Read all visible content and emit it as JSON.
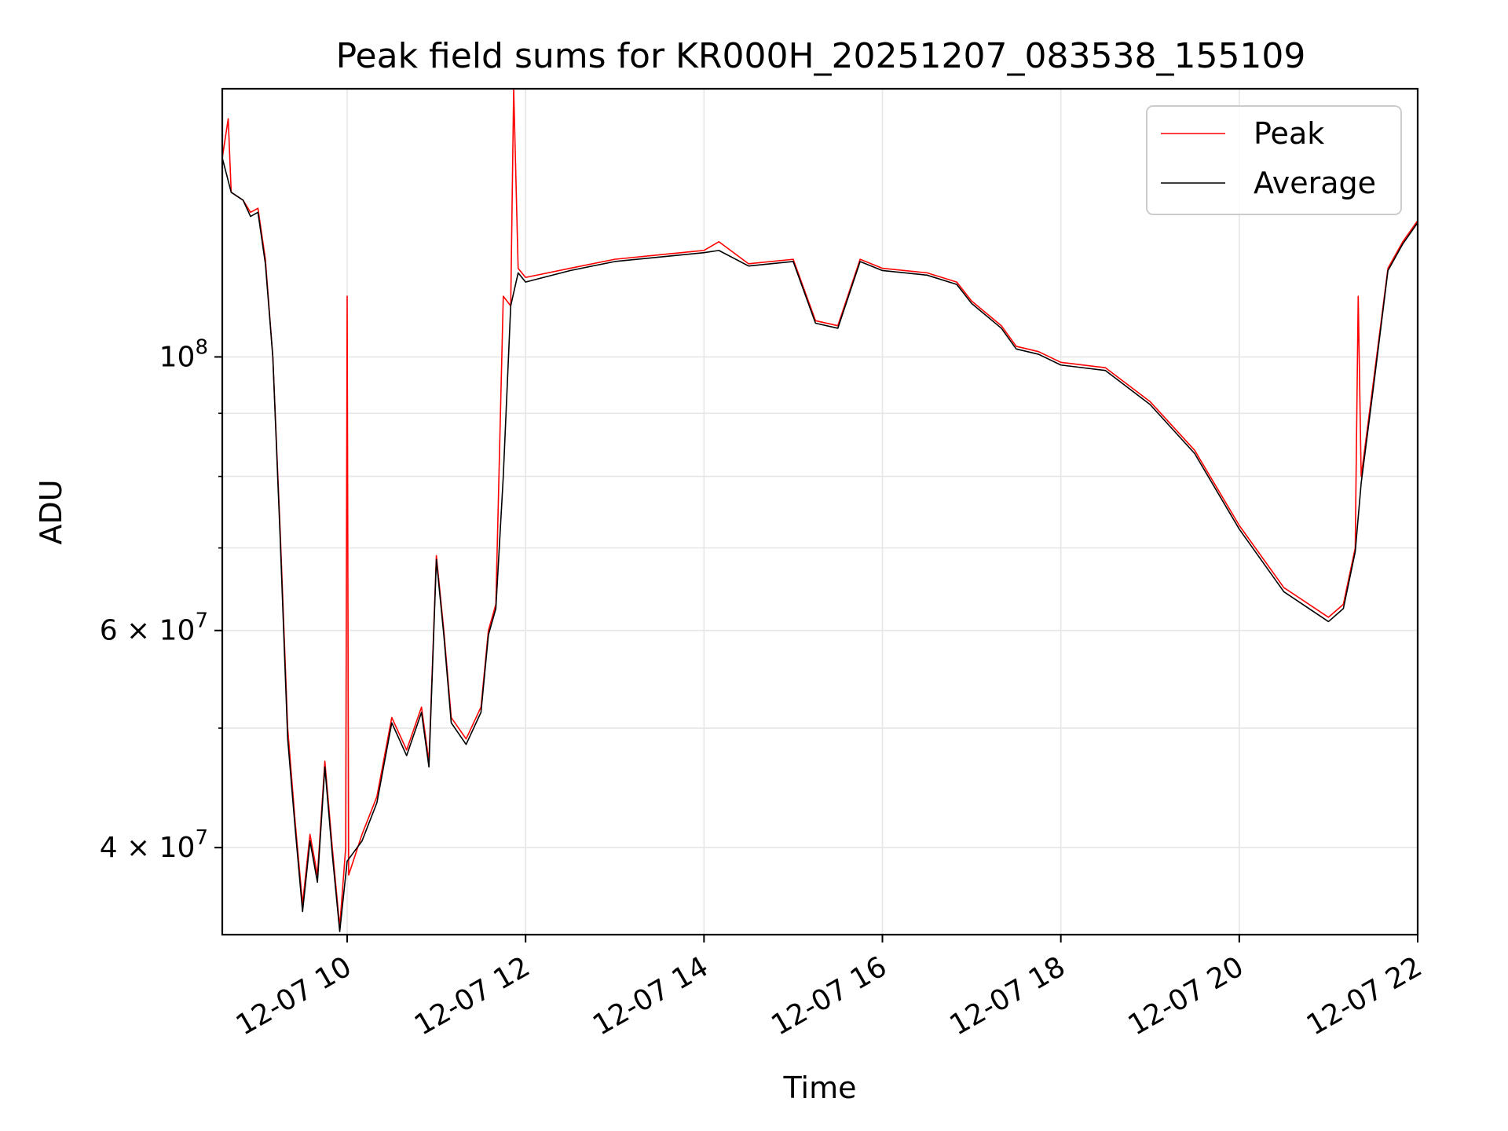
{
  "chart_data": {
    "type": "line",
    "title": "Peak field sums for KR000H_20251207_083538_155109",
    "xlabel": "Time",
    "ylabel": "ADU",
    "yscale": "log",
    "xlim": [
      "2025-12-07 08:36",
      "2025-12-07 22:00"
    ],
    "ylim": [
      34000000,
      165000000
    ],
    "grid": true,
    "legend": {
      "placement": "upper right",
      "entries": [
        "Peak",
        "Average"
      ]
    },
    "x_ticks": [
      {
        "value": "2025-12-07 10:00",
        "label": "12-07 10"
      },
      {
        "value": "2025-12-07 12:00",
        "label": "12-07 12"
      },
      {
        "value": "2025-12-07 14:00",
        "label": "12-07 14"
      },
      {
        "value": "2025-12-07 16:00",
        "label": "12-07 16"
      },
      {
        "value": "2025-12-07 18:00",
        "label": "12-07 18"
      },
      {
        "value": "2025-12-07 20:00",
        "label": "12-07 20"
      },
      {
        "value": "2025-12-07 22:00",
        "label": "12-07 22"
      }
    ],
    "y_major_ticks": [
      {
        "value": 40000000,
        "base": "4 × 10",
        "exp": "7"
      },
      {
        "value": 60000000,
        "base": "6 × 10",
        "exp": "7"
      },
      {
        "value": 100000000,
        "base": "10",
        "exp": "8"
      }
    ],
    "y_minor_ticks": [
      50000000,
      70000000,
      80000000,
      90000000
    ],
    "series": [
      {
        "name": "Peak",
        "color": "#ff0000",
        "points": [
          [
            "2025-12-07 08:36",
            145000000
          ],
          [
            "2025-12-07 08:40",
            156000000
          ],
          [
            "2025-12-07 08:42",
            136000000
          ],
          [
            "2025-12-07 08:50",
            134000000
          ],
          [
            "2025-12-07 08:55",
            131000000
          ],
          [
            "2025-12-07 09:00",
            132000000
          ],
          [
            "2025-12-07 09:05",
            120000000
          ],
          [
            "2025-12-07 09:10",
            100000000
          ],
          [
            "2025-12-07 09:15",
            72000000
          ],
          [
            "2025-12-07 09:20",
            50000000
          ],
          [
            "2025-12-07 09:25",
            42000000
          ],
          [
            "2025-12-07 09:30",
            36000000
          ],
          [
            "2025-12-07 09:35",
            41000000
          ],
          [
            "2025-12-07 09:40",
            38000000
          ],
          [
            "2025-12-07 09:45",
            47000000
          ],
          [
            "2025-12-07 09:50",
            40000000
          ],
          [
            "2025-12-07 09:55",
            34500000
          ],
          [
            "2025-12-07 09:59",
            40000000
          ],
          [
            "2025-12-07 10:00",
            112000000
          ],
          [
            "2025-12-07 10:01",
            38000000
          ],
          [
            "2025-12-07 10:10",
            41000000
          ],
          [
            "2025-12-07 10:20",
            44000000
          ],
          [
            "2025-12-07 10:30",
            51000000
          ],
          [
            "2025-12-07 10:40",
            48000000
          ],
          [
            "2025-12-07 10:50",
            52000000
          ],
          [
            "2025-12-07 10:55",
            47000000
          ],
          [
            "2025-12-07 11:00",
            69000000
          ],
          [
            "2025-12-07 11:05",
            60000000
          ],
          [
            "2025-12-07 11:10",
            51000000
          ],
          [
            "2025-12-07 11:20",
            49000000
          ],
          [
            "2025-12-07 11:30",
            52000000
          ],
          [
            "2025-12-07 11:35",
            60000000
          ],
          [
            "2025-12-07 11:40",
            63000000
          ],
          [
            "2025-12-07 11:45",
            112000000
          ],
          [
            "2025-12-07 11:50",
            110000000
          ],
          [
            "2025-12-07 11:52",
            165000000
          ],
          [
            "2025-12-07 11:55",
            118000000
          ],
          [
            "2025-12-07 12:00",
            116000000
          ],
          [
            "2025-12-07 12:30",
            118000000
          ],
          [
            "2025-12-07 13:00",
            120000000
          ],
          [
            "2025-12-07 13:30",
            121000000
          ],
          [
            "2025-12-07 14:00",
            122000000
          ],
          [
            "2025-12-07 14:10",
            124000000
          ],
          [
            "2025-12-07 14:30",
            119000000
          ],
          [
            "2025-12-07 15:00",
            120000000
          ],
          [
            "2025-12-07 15:15",
            107000000
          ],
          [
            "2025-12-07 15:30",
            106000000
          ],
          [
            "2025-12-07 15:45",
            120000000
          ],
          [
            "2025-12-07 16:00",
            118000000
          ],
          [
            "2025-12-07 16:30",
            117000000
          ],
          [
            "2025-12-07 16:50",
            115000000
          ],
          [
            "2025-12-07 17:00",
            111000000
          ],
          [
            "2025-12-07 17:20",
            106000000
          ],
          [
            "2025-12-07 17:30",
            102000000
          ],
          [
            "2025-12-07 17:45",
            101000000
          ],
          [
            "2025-12-07 18:00",
            99000000
          ],
          [
            "2025-12-07 18:30",
            98000000
          ],
          [
            "2025-12-07 19:00",
            92000000
          ],
          [
            "2025-12-07 19:30",
            84000000
          ],
          [
            "2025-12-07 20:00",
            73000000
          ],
          [
            "2025-12-07 20:30",
            65000000
          ],
          [
            "2025-12-07 21:00",
            61500000
          ],
          [
            "2025-12-07 21:10",
            63000000
          ],
          [
            "2025-12-07 21:18",
            70000000
          ],
          [
            "2025-12-07 21:20",
            112000000
          ],
          [
            "2025-12-07 21:22",
            80000000
          ],
          [
            "2025-12-07 21:30",
            95000000
          ],
          [
            "2025-12-07 21:40",
            118000000
          ],
          [
            "2025-12-07 21:50",
            124000000
          ],
          [
            "2025-12-07 22:00",
            129000000
          ]
        ]
      },
      {
        "name": "Average",
        "color": "#000000",
        "points": [
          [
            "2025-12-07 08:36",
            145000000
          ],
          [
            "2025-12-07 08:42",
            136000000
          ],
          [
            "2025-12-07 08:50",
            134000000
          ],
          [
            "2025-12-07 08:55",
            130000000
          ],
          [
            "2025-12-07 09:00",
            131000000
          ],
          [
            "2025-12-07 09:05",
            119000000
          ],
          [
            "2025-12-07 09:10",
            100000000
          ],
          [
            "2025-12-07 09:15",
            71000000
          ],
          [
            "2025-12-07 09:20",
            49000000
          ],
          [
            "2025-12-07 09:25",
            41500000
          ],
          [
            "2025-12-07 09:30",
            35500000
          ],
          [
            "2025-12-07 09:35",
            40500000
          ],
          [
            "2025-12-07 09:40",
            37500000
          ],
          [
            "2025-12-07 09:45",
            46500000
          ],
          [
            "2025-12-07 09:50",
            39500000
          ],
          [
            "2025-12-07 09:55",
            34200000
          ],
          [
            "2025-12-07 10:00",
            39000000
          ],
          [
            "2025-12-07 10:10",
            40500000
          ],
          [
            "2025-12-07 10:20",
            43500000
          ],
          [
            "2025-12-07 10:30",
            50500000
          ],
          [
            "2025-12-07 10:40",
            47500000
          ],
          [
            "2025-12-07 10:50",
            51500000
          ],
          [
            "2025-12-07 10:55",
            46500000
          ],
          [
            "2025-12-07 11:00",
            68500000
          ],
          [
            "2025-12-07 11:05",
            59500000
          ],
          [
            "2025-12-07 11:10",
            50500000
          ],
          [
            "2025-12-07 11:20",
            48500000
          ],
          [
            "2025-12-07 11:30",
            51500000
          ],
          [
            "2025-12-07 11:35",
            59500000
          ],
          [
            "2025-12-07 11:40",
            62500000
          ],
          [
            "2025-12-07 11:45",
            80000000
          ],
          [
            "2025-12-07 11:50",
            110000000
          ],
          [
            "2025-12-07 11:55",
            117000000
          ],
          [
            "2025-12-07 12:00",
            115000000
          ],
          [
            "2025-12-07 12:30",
            117500000
          ],
          [
            "2025-12-07 13:00",
            119500000
          ],
          [
            "2025-12-07 13:30",
            120500000
          ],
          [
            "2025-12-07 14:00",
            121500000
          ],
          [
            "2025-12-07 14:10",
            122000000
          ],
          [
            "2025-12-07 14:30",
            118500000
          ],
          [
            "2025-12-07 15:00",
            119500000
          ],
          [
            "2025-12-07 15:15",
            106500000
          ],
          [
            "2025-12-07 15:30",
            105500000
          ],
          [
            "2025-12-07 15:45",
            119500000
          ],
          [
            "2025-12-07 16:00",
            117500000
          ],
          [
            "2025-12-07 16:30",
            116500000
          ],
          [
            "2025-12-07 16:50",
            114500000
          ],
          [
            "2025-12-07 17:00",
            110500000
          ],
          [
            "2025-12-07 17:20",
            105500000
          ],
          [
            "2025-12-07 17:30",
            101500000
          ],
          [
            "2025-12-07 17:45",
            100500000
          ],
          [
            "2025-12-07 18:00",
            98500000
          ],
          [
            "2025-12-07 18:30",
            97500000
          ],
          [
            "2025-12-07 19:00",
            91500000
          ],
          [
            "2025-12-07 19:30",
            83500000
          ],
          [
            "2025-12-07 20:00",
            72500000
          ],
          [
            "2025-12-07 20:30",
            64500000
          ],
          [
            "2025-12-07 21:00",
            61000000
          ],
          [
            "2025-12-07 21:10",
            62500000
          ],
          [
            "2025-12-07 21:18",
            69500000
          ],
          [
            "2025-12-07 21:22",
            79000000
          ],
          [
            "2025-12-07 21:30",
            94000000
          ],
          [
            "2025-12-07 21:40",
            117500000
          ],
          [
            "2025-12-07 21:50",
            123500000
          ],
          [
            "2025-12-07 22:00",
            128500000
          ]
        ]
      }
    ]
  }
}
